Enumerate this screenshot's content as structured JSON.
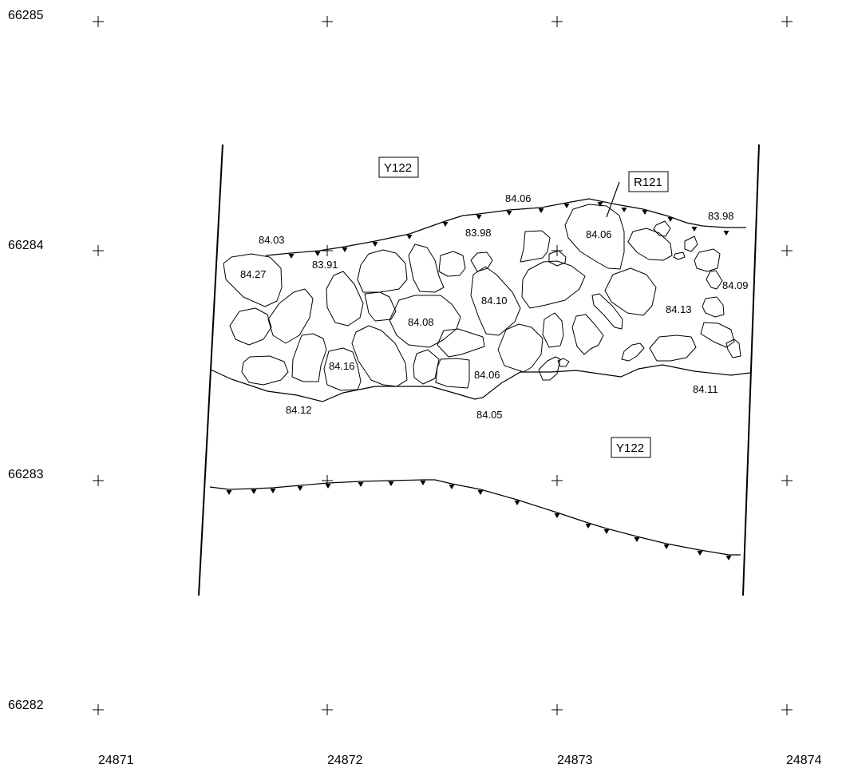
{
  "grid": {
    "northings": [
      "66285",
      "66284",
      "66283",
      "66282"
    ],
    "eastings": [
      "24871",
      "24872",
      "24873",
      "24874"
    ]
  },
  "contexts": {
    "upper_label": "Y122",
    "lower_label": "Y122",
    "feature_label": "R121"
  },
  "elevations": {
    "e1": "84.06",
    "e2": "83.98",
    "e3": "84.03",
    "e4": "83.98",
    "e5": "83.91",
    "e6": "84.06",
    "e7": "84.27",
    "e8": "84.09",
    "e9": "84.10",
    "e10": "84.13",
    "e11": "84.08",
    "e12": "84.16",
    "e13": "84.06",
    "e14": "84.11",
    "e15": "84.12",
    "e16": "84.05"
  }
}
